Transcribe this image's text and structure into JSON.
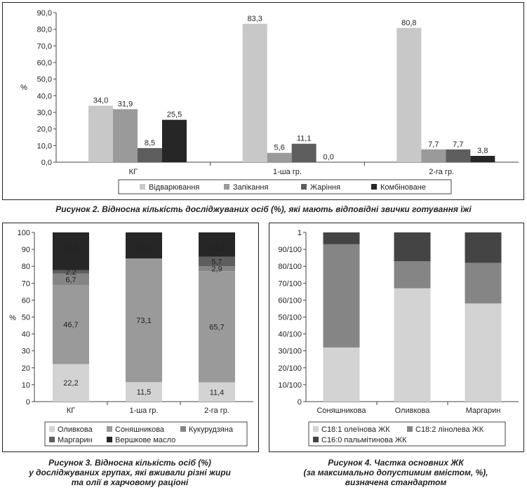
{
  "colors": {
    "light": "#c8c8c8",
    "mid": "#9a9a9a",
    "dark": "#5e5e5e",
    "black": "#262626",
    "darkgray": "#444444",
    "lightgray": "#d3d3d3",
    "midgray": "#858585"
  },
  "chart_data": [
    {
      "type": "bar",
      "ylabel": "%",
      "ylim": [
        0,
        90
      ],
      "yticks": [
        "0,0",
        "10,0",
        "20,0",
        "30,0",
        "40,0",
        "50,0",
        "60,0",
        "70,0",
        "80,0",
        "90,0"
      ],
      "categories": [
        "КГ",
        "1-ша гр.",
        "2-га гр."
      ],
      "series": [
        {
          "name": "Відварювання",
          "values": [
            34.0,
            83.3,
            80.8
          ],
          "labels": [
            "34,0",
            "83,3",
            "80,8"
          ]
        },
        {
          "name": "Запікання",
          "values": [
            31.9,
            5.6,
            7.7
          ],
          "labels": [
            "31,9",
            "5,6",
            "7,7"
          ]
        },
        {
          "name": "Жаріння",
          "values": [
            8.5,
            11.1,
            7.7
          ],
          "labels": [
            "8,5",
            "11,1",
            "7,7"
          ]
        },
        {
          "name": "Комбіноване",
          "values": [
            25.5,
            0.0,
            3.8
          ],
          "labels": [
            "25,5",
            "0,0",
            "3,8"
          ]
        }
      ],
      "legend": "bottom",
      "grid": false
    },
    {
      "type": "bar",
      "stacked": true,
      "ylabel": "%",
      "ylim": [
        0,
        100
      ],
      "yticks": [
        "0",
        "10",
        "20",
        "30",
        "40",
        "50",
        "60",
        "70",
        "80",
        "90",
        "100"
      ],
      "categories": [
        "КГ",
        "1-ша гр.",
        "2-га гр."
      ],
      "series": [
        {
          "name": "Оливкова",
          "values": [
            22.2,
            11.5,
            11.4
          ],
          "labels": [
            "22,2",
            "11,5",
            "11,4"
          ]
        },
        {
          "name": "Соняшникова",
          "values": [
            46.7,
            73.1,
            65.7
          ],
          "labels": [
            "46,7",
            "73,1",
            "65,7"
          ]
        },
        {
          "name": "Кукурудзяна",
          "values": [
            6.7,
            0.0,
            2.9
          ],
          "labels": [
            "6,7",
            "",
            "2,9"
          ]
        },
        {
          "name": "Маргарин",
          "values": [
            2.2,
            0.0,
            5.7
          ],
          "labels": [
            "2,2",
            "",
            "5,7"
          ]
        },
        {
          "name": "Вершкове масло",
          "values": [
            22.2,
            15.4,
            14.3
          ],
          "labels": [
            "22,2",
            "15,4",
            "14,3"
          ]
        }
      ],
      "legend": "bottom",
      "grid": false
    },
    {
      "type": "bar",
      "stacked": true,
      "ylim": [
        0,
        100
      ],
      "yticks": [
        "0",
        "10/100",
        "20/100",
        "30/100",
        "40/100",
        "50/100",
        "60/100",
        "70/100",
        "80/100",
        "90/100",
        "1"
      ],
      "categories": [
        "Соняшникова",
        "Оливкова",
        "Маргарин"
      ],
      "series": [
        {
          "name": "С18:1 олеїнова ЖК",
          "values": [
            32,
            67,
            58
          ]
        },
        {
          "name": "С18:2 лінолева ЖК",
          "values": [
            61,
            16,
            24
          ]
        },
        {
          "name": "С16:0 пальмітинова ЖК",
          "values": [
            7,
            17,
            18
          ]
        }
      ],
      "legend": "bottom",
      "grid": false
    }
  ],
  "captions": {
    "fig2": "Рисунок 2.  Відносна кількість досліджуваних осіб (%), які мають відповідні звички готування їжі",
    "fig3_line1": "Рисунок 3.  Відносна кількість осіб (%)",
    "fig3_line2": "у досліджуваних групах, які вживали різні жири",
    "fig3_line3": "та олії в харчовому раціоні",
    "fig4_line1": "Рисунок 4.  Частка основних ЖК",
    "fig4_line2": "(за максимально допустимим вмістом, %),",
    "fig4_line3": "визначена стандартом"
  }
}
